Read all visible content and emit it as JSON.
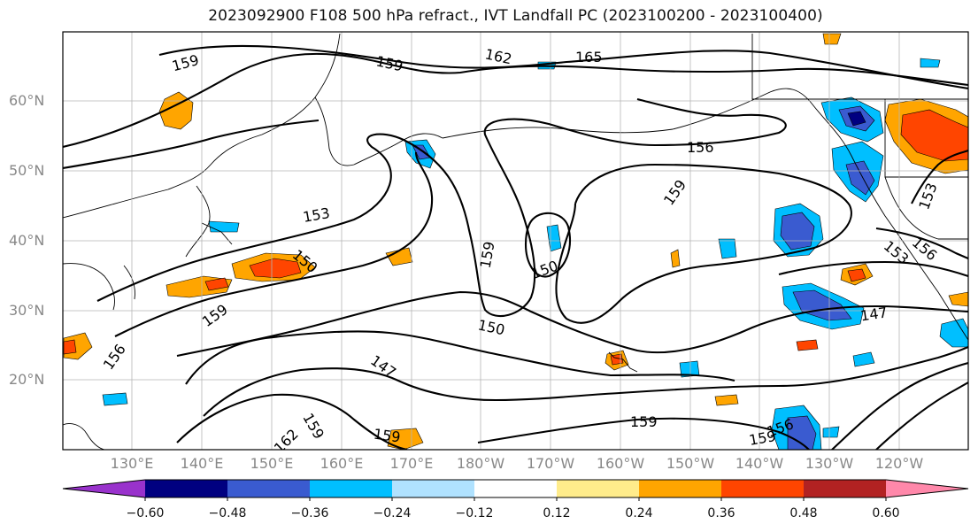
{
  "title": "2023092900 F108 500 hPa refract., IVT Landfall PC (2023100200 - 2023100400)",
  "lat_labels": [
    "60°N",
    "50°N",
    "40°N",
    "30°N",
    "20°N"
  ],
  "lon_labels": [
    "130°E",
    "140°E",
    "150°E",
    "160°E",
    "170°E",
    "180°W",
    "170°W",
    "160°W",
    "150°W",
    "140°W",
    "130°W",
    "120°W"
  ],
  "colorbar": {
    "colors": [
      "#9932cc",
      "#000080",
      "#3a5bd0",
      "#00bfff",
      "#b0e2ff",
      "#ffffff",
      "#ffec8b",
      "#ffa500",
      "#ff4500",
      "#b22222",
      "#ff88aa"
    ],
    "tick_labels": [
      "−0.60",
      "−0.48",
      "−0.36",
      "−0.24",
      "−0.12",
      "0.12",
      "0.24",
      "0.36",
      "0.48",
      "0.60"
    ]
  },
  "contour_labels": [
    "159",
    "159",
    "162",
    "165",
    "156",
    "159",
    "153",
    "153",
    "156",
    "153",
    "150",
    "159",
    "150",
    "159",
    "150",
    "147",
    "147",
    "156",
    "159",
    "159",
    "159",
    "156",
    "162",
    "159"
  ]
}
